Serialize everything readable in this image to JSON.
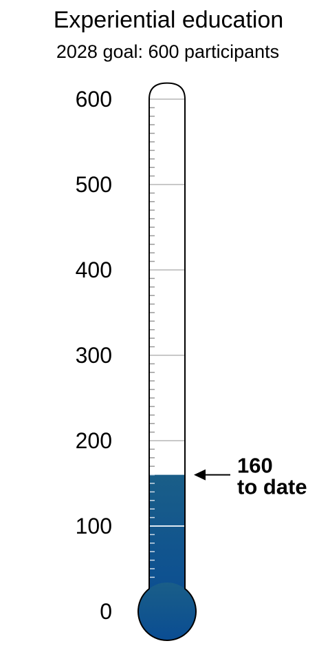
{
  "chart_data": {
    "type": "thermometer",
    "title": "Experiential education",
    "subtitle": "2028 goal: 600 participants",
    "goal": 600,
    "value": 160,
    "ylim": [
      0,
      600
    ],
    "major_ticks": [
      0,
      100,
      200,
      300,
      400,
      500,
      600
    ],
    "tick_labels": [
      "0",
      "100",
      "200",
      "300",
      "400",
      "500",
      "600"
    ],
    "minor_tick_step": 10,
    "grid": true,
    "callout": {
      "value_label": "160",
      "text": "to date"
    },
    "colors": {
      "fill_top": "#1a5e88",
      "fill_bottom": "#0a4d93",
      "outline": "#000000",
      "gridline": "#c8c8c8",
      "tick": "#999999"
    }
  }
}
